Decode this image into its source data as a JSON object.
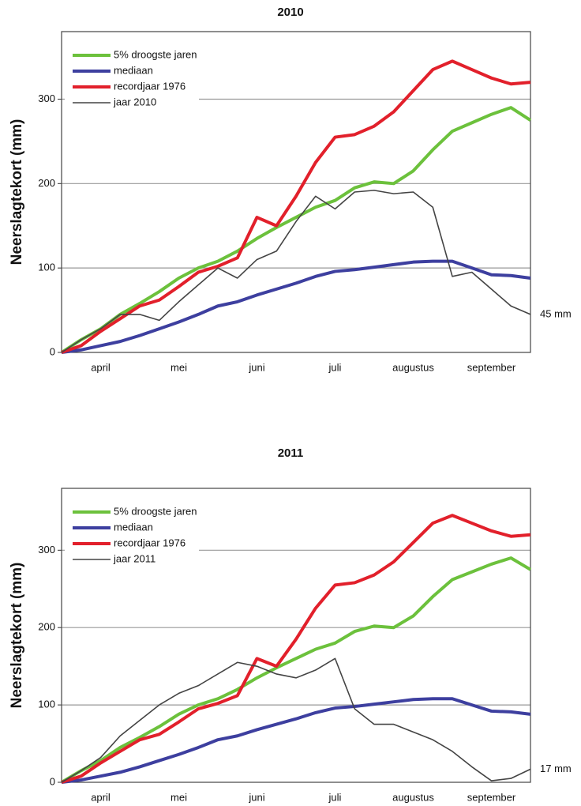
{
  "chart_data": [
    {
      "type": "line",
      "title": "2010",
      "y_label": "Neerslagtekort (mm)",
      "categories": [
        null,
        null,
        "april",
        null,
        null,
        null,
        "mei",
        null,
        null,
        null,
        "juni",
        null,
        null,
        null,
        "juli",
        null,
        null,
        null,
        "augustus",
        null,
        null,
        null,
        "september",
        null,
        null
      ],
      "series": [
        {
          "name": "5% droogste jaren",
          "color": "#6cc13c",
          "values": [
            0,
            15,
            28,
            45,
            58,
            72,
            88,
            100,
            108,
            120,
            135,
            148,
            160,
            172,
            180,
            195,
            202,
            200,
            215,
            240,
            262,
            272,
            282,
            290,
            275
          ]
        },
        {
          "name": "mediaan",
          "color": "#3d3f9f",
          "values": [
            0,
            3,
            8,
            13,
            20,
            28,
            36,
            45,
            55,
            60,
            68,
            75,
            82,
            90,
            96,
            98,
            101,
            104,
            107,
            108,
            108,
            100,
            92,
            91,
            88
          ]
        },
        {
          "name": "recordjaar 1976",
          "color": "#e2202b",
          "values": [
            0,
            8,
            25,
            40,
            55,
            62,
            78,
            95,
            102,
            112,
            160,
            150,
            185,
            225,
            255,
            258,
            268,
            285,
            310,
            335,
            345,
            335,
            325,
            318,
            320
          ]
        },
        {
          "name": "jaar 2010",
          "color": "#444444",
          "values": [
            0,
            15,
            28,
            45,
            45,
            38,
            60,
            80,
            100,
            88,
            110,
            120,
            155,
            185,
            170,
            190,
            192,
            188,
            190,
            172,
            90,
            95,
            75,
            55,
            45
          ]
        }
      ],
      "annotation": "45 mm",
      "ylim": [
        0,
        380
      ],
      "yticks": [
        0,
        100,
        200,
        300
      ],
      "grid": true,
      "legend": "upper left"
    },
    {
      "type": "line",
      "title": "2011",
      "y_label": "Neerslagtekort (mm)",
      "categories": [
        null,
        null,
        "april",
        null,
        null,
        null,
        "mei",
        null,
        null,
        null,
        "juni",
        null,
        null,
        null,
        "juli",
        null,
        null,
        null,
        "augustus",
        null,
        null,
        null,
        "september",
        null,
        null
      ],
      "series": [
        {
          "name": "5% droogste jaren",
          "color": "#6cc13c",
          "values": [
            0,
            15,
            28,
            45,
            58,
            72,
            88,
            100,
            108,
            120,
            135,
            148,
            160,
            172,
            180,
            195,
            202,
            200,
            215,
            240,
            262,
            272,
            282,
            290,
            275
          ]
        },
        {
          "name": "mediaan",
          "color": "#3d3f9f",
          "values": [
            0,
            3,
            8,
            13,
            20,
            28,
            36,
            45,
            55,
            60,
            68,
            75,
            82,
            90,
            96,
            98,
            101,
            104,
            107,
            108,
            108,
            100,
            92,
            91,
            88
          ]
        },
        {
          "name": "recordjaar 1976",
          "color": "#e2202b",
          "values": [
            0,
            8,
            25,
            40,
            55,
            62,
            78,
            95,
            102,
            112,
            160,
            150,
            185,
            225,
            255,
            258,
            268,
            285,
            310,
            335,
            345,
            335,
            325,
            318,
            320
          ]
        },
        {
          "name": "jaar 2011",
          "color": "#444444",
          "values": [
            0,
            15,
            32,
            60,
            80,
            100,
            115,
            125,
            140,
            155,
            150,
            140,
            135,
            145,
            160,
            95,
            75,
            75,
            65,
            55,
            40,
            20,
            2,
            5,
            17
          ]
        }
      ],
      "annotation": "17 mm",
      "ylim": [
        0,
        380
      ],
      "yticks": [
        0,
        100,
        200,
        300
      ],
      "grid": true,
      "legend": "upper left"
    }
  ]
}
